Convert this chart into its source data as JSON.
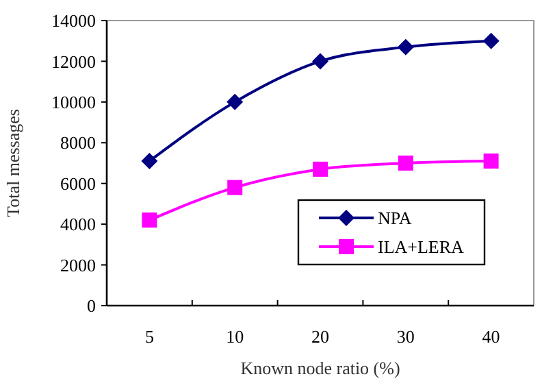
{
  "chart_data": {
    "type": "line",
    "xlabel": "Known node ratio (%)",
    "ylabel": "Total messages",
    "categories": [
      "5",
      "10",
      "20",
      "30",
      "40"
    ],
    "series": [
      {
        "name": "NPA",
        "color": "#000080",
        "marker": "diamond",
        "values": [
          7100,
          10000,
          12000,
          12700,
          13000
        ]
      },
      {
        "name": "ILA+LERA",
        "color": "#ff00ff",
        "marker": "square",
        "values": [
          4200,
          5800,
          6700,
          7000,
          7100
        ]
      }
    ],
    "ylim": [
      0,
      14000
    ],
    "yticks": [
      0,
      2000,
      4000,
      6000,
      8000,
      10000,
      12000,
      14000
    ],
    "grid": false,
    "legend": "right"
  }
}
